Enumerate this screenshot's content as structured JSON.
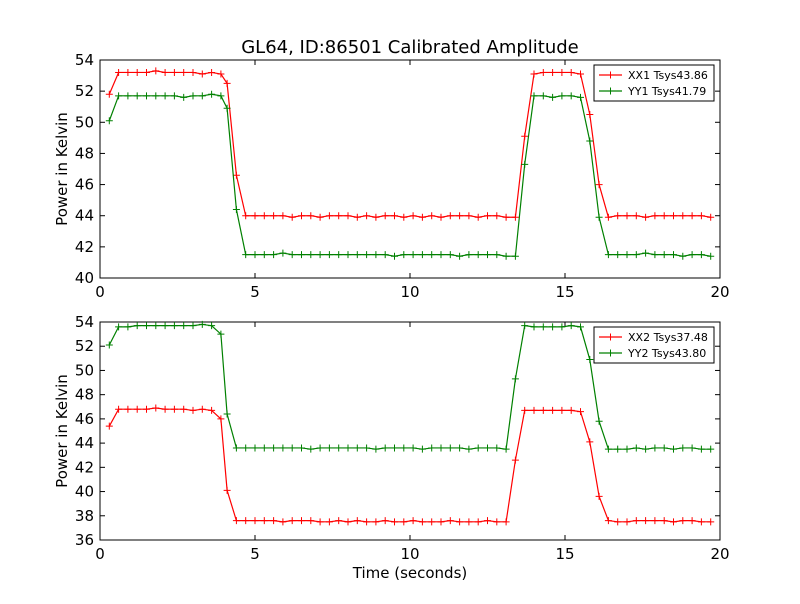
{
  "title": "GL64, ID:86501 Calibrated Amplitude",
  "chart_data": [
    {
      "type": "line",
      "title": "GL64, ID:86501 Calibrated Amplitude",
      "xlabel": "",
      "ylabel": "Power in Kelvin",
      "xlim": [
        0,
        20
      ],
      "ylim": [
        40,
        54
      ],
      "xticks": [
        "0",
        "5",
        "10",
        "15",
        "20"
      ],
      "yticks": [
        "40",
        "42",
        "44",
        "46",
        "48",
        "50",
        "52",
        "54"
      ],
      "legend_position": "top-right",
      "grid": false,
      "x": [
        0.3,
        0.6,
        0.9,
        1.2,
        1.5,
        1.8,
        2.1,
        2.4,
        2.7,
        3.0,
        3.3,
        3.6,
        3.9,
        4.1,
        4.4,
        4.7,
        5.0,
        5.3,
        5.6,
        5.9,
        6.2,
        6.5,
        6.8,
        7.1,
        7.4,
        7.7,
        8.0,
        8.3,
        8.6,
        8.9,
        9.2,
        9.5,
        9.8,
        10.1,
        10.4,
        10.7,
        11.0,
        11.3,
        11.6,
        11.9,
        12.2,
        12.5,
        12.8,
        13.1,
        13.4,
        13.7,
        14.0,
        14.3,
        14.6,
        14.9,
        15.2,
        15.5,
        15.8,
        16.1,
        16.4,
        16.7,
        17.0,
        17.3,
        17.6,
        17.9,
        18.2,
        18.5,
        18.8,
        19.1,
        19.4,
        19.7
      ],
      "series": [
        {
          "name": "XX1 Tsys43.86",
          "color": "#ff0000",
          "values": [
            51.8,
            53.2,
            53.2,
            53.2,
            53.2,
            53.3,
            53.2,
            53.2,
            53.2,
            53.2,
            53.1,
            53.2,
            53.1,
            52.5,
            46.6,
            44.0,
            44.0,
            44.0,
            44.0,
            44.0,
            43.9,
            44.0,
            44.0,
            43.9,
            44.0,
            44.0,
            44.0,
            43.9,
            44.0,
            43.9,
            44.0,
            44.0,
            43.9,
            44.0,
            43.9,
            44.0,
            43.9,
            44.0,
            44.0,
            44.0,
            43.9,
            44.0,
            44.0,
            43.9,
            43.9,
            49.1,
            53.1,
            53.2,
            53.2,
            53.2,
            53.2,
            53.1,
            50.5,
            46.0,
            43.9,
            44.0,
            44.0,
            44.0,
            43.9,
            44.0,
            44.0,
            44.0,
            44.0,
            44.0,
            44.0,
            43.9
          ]
        },
        {
          "name": "YY1 Tsys41.79",
          "color": "#008000",
          "values": [
            50.1,
            51.7,
            51.7,
            51.7,
            51.7,
            51.7,
            51.7,
            51.7,
            51.6,
            51.7,
            51.7,
            51.8,
            51.7,
            50.9,
            44.4,
            41.5,
            41.5,
            41.5,
            41.5,
            41.6,
            41.5,
            41.5,
            41.5,
            41.5,
            41.5,
            41.5,
            41.5,
            41.5,
            41.5,
            41.5,
            41.5,
            41.4,
            41.5,
            41.5,
            41.5,
            41.5,
            41.5,
            41.5,
            41.4,
            41.5,
            41.5,
            41.5,
            41.5,
            41.4,
            41.4,
            47.3,
            51.7,
            51.7,
            51.6,
            51.7,
            51.7,
            51.6,
            48.8,
            43.9,
            41.5,
            41.5,
            41.5,
            41.5,
            41.6,
            41.5,
            41.5,
            41.5,
            41.4,
            41.5,
            41.5,
            41.4
          ]
        }
      ]
    },
    {
      "type": "line",
      "title": "",
      "xlabel": "Time (seconds)",
      "ylabel": "Power in Kelvin",
      "xlim": [
        0,
        20
      ],
      "ylim": [
        36,
        54
      ],
      "xticks": [
        "0",
        "5",
        "10",
        "15",
        "20"
      ],
      "yticks": [
        "36",
        "38",
        "40",
        "42",
        "44",
        "46",
        "48",
        "50",
        "52",
        "54"
      ],
      "legend_position": "top-right",
      "grid": false,
      "x": [
        0.3,
        0.6,
        0.9,
        1.2,
        1.5,
        1.8,
        2.1,
        2.4,
        2.7,
        3.0,
        3.3,
        3.6,
        3.9,
        4.1,
        4.4,
        4.7,
        5.0,
        5.3,
        5.6,
        5.9,
        6.2,
        6.5,
        6.8,
        7.1,
        7.4,
        7.7,
        8.0,
        8.3,
        8.6,
        8.9,
        9.2,
        9.5,
        9.8,
        10.1,
        10.4,
        10.7,
        11.0,
        11.3,
        11.6,
        11.9,
        12.2,
        12.5,
        12.8,
        13.1,
        13.4,
        13.7,
        14.0,
        14.3,
        14.6,
        14.9,
        15.2,
        15.5,
        15.8,
        16.1,
        16.4,
        16.7,
        17.0,
        17.3,
        17.6,
        17.9,
        18.2,
        18.5,
        18.8,
        19.1,
        19.4,
        19.7
      ],
      "series": [
        {
          "name": "XX2 Tsys37.48",
          "color": "#ff0000",
          "values": [
            45.4,
            46.8,
            46.8,
            46.8,
            46.8,
            46.9,
            46.8,
            46.8,
            46.8,
            46.7,
            46.8,
            46.7,
            46.0,
            40.1,
            37.6,
            37.6,
            37.6,
            37.6,
            37.6,
            37.5,
            37.6,
            37.6,
            37.6,
            37.5,
            37.5,
            37.6,
            37.5,
            37.6,
            37.5,
            37.5,
            37.6,
            37.5,
            37.5,
            37.6,
            37.5,
            37.5,
            37.5,
            37.6,
            37.5,
            37.5,
            37.5,
            37.6,
            37.5,
            37.5,
            42.6,
            46.7,
            46.7,
            46.7,
            46.7,
            46.7,
            46.7,
            46.6,
            44.1,
            39.6,
            37.6,
            37.5,
            37.5,
            37.6,
            37.6,
            37.6,
            37.6,
            37.5,
            37.6,
            37.6,
            37.5,
            37.5
          ]
        },
        {
          "name": "YY2 Tsys43.80",
          "color": "#008000",
          "values": [
            52.1,
            53.6,
            53.6,
            53.7,
            53.7,
            53.7,
            53.7,
            53.7,
            53.7,
            53.7,
            53.8,
            53.7,
            53.0,
            46.4,
            43.6,
            43.6,
            43.6,
            43.6,
            43.6,
            43.6,
            43.6,
            43.6,
            43.5,
            43.6,
            43.6,
            43.6,
            43.6,
            43.6,
            43.6,
            43.5,
            43.6,
            43.6,
            43.6,
            43.6,
            43.5,
            43.6,
            43.6,
            43.6,
            43.6,
            43.5,
            43.6,
            43.6,
            43.6,
            43.5,
            49.3,
            53.7,
            53.6,
            53.6,
            53.6,
            53.6,
            53.7,
            53.6,
            50.9,
            45.8,
            43.5,
            43.5,
            43.5,
            43.6,
            43.5,
            43.6,
            43.6,
            43.5,
            43.6,
            43.6,
            43.5,
            43.5
          ]
        }
      ]
    }
  ]
}
